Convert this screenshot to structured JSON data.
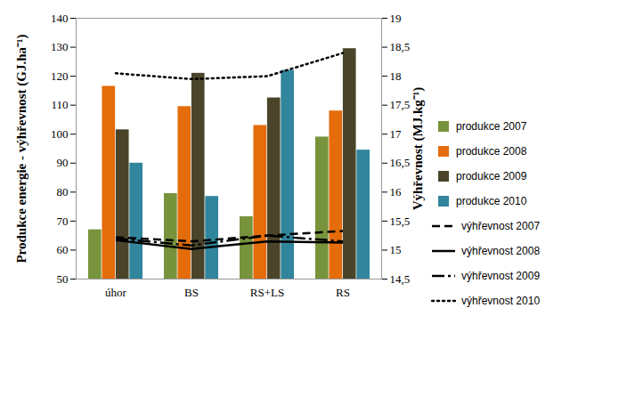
{
  "chart_data": {
    "type": "bar",
    "categories": [
      "úhor",
      "BS",
      "RS+LS",
      "RS"
    ],
    "ylabel": "Produkce energie - výhřevnost (GJ.ha⁻¹)",
    "y2label": "Výhřevnost (MJ.kg⁻¹)",
    "ylim": [
      50,
      140
    ],
    "yticks": [
      50,
      60,
      70,
      80,
      90,
      100,
      110,
      120,
      130,
      140
    ],
    "y2lim": [
      14.5,
      19
    ],
    "y2ticks": [
      {
        "value": 14.5,
        "label": "14,5"
      },
      15,
      {
        "value": 15.5,
        "label": "15,5"
      },
      16,
      {
        "value": 16.5,
        "label": "16,5"
      },
      17,
      {
        "value": 17.5,
        "label": "17,5"
      },
      18,
      {
        "value": 18.5,
        "label": "18,5"
      },
      19
    ],
    "legend": "right",
    "series": [
      {
        "name": "produkce 2007",
        "type": "bar",
        "color": "#77933C",
        "values": [
          67,
          79.5,
          71.5,
          99
        ]
      },
      {
        "name": "produkce 2008",
        "type": "bar",
        "color": "#E46C0A",
        "values": [
          116.5,
          109.5,
          103,
          108
        ]
      },
      {
        "name": "produkce 2009",
        "type": "bar",
        "color": "#4A452A",
        "values": [
          101.5,
          121,
          112.5,
          129.5
        ]
      },
      {
        "name": "produkce 2010",
        "type": "bar",
        "color": "#31859C",
        "values": [
          90,
          78.5,
          122,
          94.5
        ]
      },
      {
        "name": "výhřevnost 2007",
        "type": "line",
        "axis": "y2",
        "color": "#000000",
        "line_style": "dashed",
        "values": [
          15.22,
          15.15,
          15.25,
          15.33
        ]
      },
      {
        "name": "výhřevnost 2008",
        "type": "line",
        "axis": "y2",
        "color": "#000000",
        "line_style": "solid",
        "values": [
          15.17,
          15.02,
          15.15,
          15.13
        ]
      },
      {
        "name": "výhřevnost 2009",
        "type": "line",
        "axis": "y2",
        "color": "#000000",
        "line_style": "dashdot",
        "values": [
          15.2,
          15.08,
          15.25,
          15.15
        ]
      },
      {
        "name": "výhřevnost 2010",
        "type": "line",
        "axis": "y2",
        "color": "#000000",
        "line_style": "dotted",
        "values": [
          18.05,
          17.95,
          18.0,
          18.4
        ]
      }
    ]
  }
}
